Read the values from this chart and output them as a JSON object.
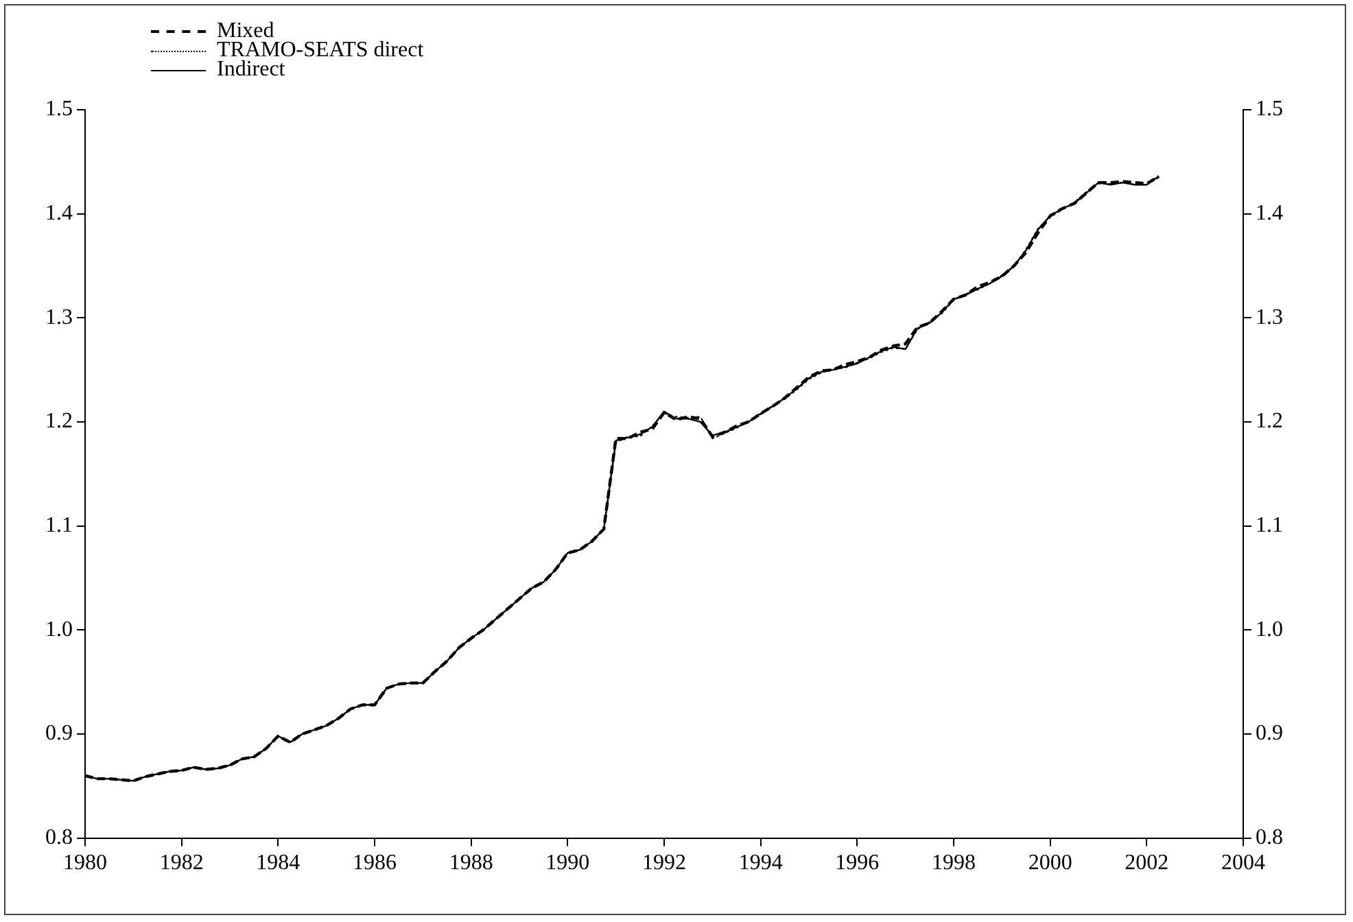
{
  "chart_data": {
    "type": "line",
    "x": [
      1980,
      1980.25,
      1980.5,
      1981,
      1981.25,
      1981.75,
      1982,
      1982.25,
      1982.5,
      1982.75,
      1983,
      1983.25,
      1983.5,
      1983.75,
      1984,
      1984.25,
      1984.5,
      1984.75,
      1985,
      1985.25,
      1985.5,
      1985.75,
      1986,
      1986.25,
      1986.5,
      1986.75,
      1987,
      1987.25,
      1987.5,
      1987.75,
      1988,
      1988.25,
      1988.5,
      1988.75,
      1989,
      1989.25,
      1989.5,
      1989.75,
      1990,
      1990.25,
      1990.5,
      1990.75,
      1991,
      1991.25,
      1991.5,
      1991.75,
      1992,
      1992.25,
      1992.5,
      1992.75,
      1993,
      1993.25,
      1993.5,
      1993.75,
      1994,
      1994.25,
      1994.5,
      1994.75,
      1995,
      1995.25,
      1995.5,
      1995.75,
      1996,
      1996.25,
      1996.5,
      1996.75,
      1997,
      1997.25,
      1997.5,
      1997.75,
      1998,
      1998.25,
      1998.5,
      1998.75,
      1999,
      1999.25,
      1999.5,
      1999.75,
      2000,
      2000.25,
      2000.5,
      2000.75,
      2001,
      2001.25,
      2001.5,
      2001.75,
      2002,
      2002.25
    ],
    "series": [
      {
        "name": "Mixed",
        "color": "#000000",
        "line_style": "dashed",
        "values": [
          0.86,
          0.857,
          0.857,
          0.855,
          0.859,
          0.864,
          0.865,
          0.868,
          0.866,
          0.867,
          0.87,
          0.876,
          0.878,
          0.886,
          0.898,
          0.892,
          0.9,
          0.904,
          0.908,
          0.915,
          0.924,
          0.928,
          0.928,
          0.944,
          0.948,
          0.949,
          0.949,
          0.96,
          0.97,
          0.983,
          0.992,
          1.0,
          1.01,
          1.02,
          1.03,
          1.04,
          1.046,
          1.058,
          1.074,
          1.077,
          1.085,
          1.097,
          1.184,
          1.184,
          1.19,
          1.193,
          1.209,
          1.202,
          1.205,
          1.203,
          1.186,
          1.19,
          1.196,
          1.2,
          1.208,
          1.215,
          1.223,
          1.233,
          1.243,
          1.249,
          1.25,
          1.255,
          1.258,
          1.262,
          1.269,
          1.273,
          1.275,
          1.291,
          1.295,
          1.306,
          1.318,
          1.322,
          1.33,
          1.334,
          1.34,
          1.35,
          1.363,
          1.382,
          1.398,
          1.405,
          1.41,
          1.42,
          1.43,
          1.43,
          1.431,
          1.43,
          1.429,
          1.436
        ]
      },
      {
        "name": "TRAMO-SEATS direct",
        "color": "#000000",
        "line_style": "dotted",
        "values": [
          0.86,
          0.857,
          0.857,
          0.855,
          0.859,
          0.864,
          0.865,
          0.868,
          0.866,
          0.867,
          0.87,
          0.876,
          0.878,
          0.886,
          0.898,
          0.892,
          0.9,
          0.904,
          0.908,
          0.915,
          0.924,
          0.928,
          0.928,
          0.944,
          0.948,
          0.949,
          0.949,
          0.96,
          0.97,
          0.983,
          0.992,
          1.0,
          1.01,
          1.02,
          1.03,
          1.04,
          1.046,
          1.058,
          1.074,
          1.077,
          1.085,
          1.097,
          1.18,
          1.186,
          1.186,
          1.196,
          1.208,
          1.205,
          1.204,
          1.205,
          1.184,
          1.189,
          1.194,
          1.201,
          1.207,
          1.216,
          1.222,
          1.231,
          1.241,
          1.247,
          1.251,
          1.252,
          1.257,
          1.261,
          1.267,
          1.271,
          1.27,
          1.289,
          1.296,
          1.304,
          1.317,
          1.323,
          1.327,
          1.333,
          1.341,
          1.349,
          1.366,
          1.386,
          1.397,
          1.404,
          1.411,
          1.421,
          1.429,
          1.429,
          1.43,
          1.428,
          1.428,
          1.435
        ]
      },
      {
        "name": "Indirect",
        "color": "#000000",
        "line_style": "solid",
        "values": [
          0.86,
          0.857,
          0.857,
          0.855,
          0.859,
          0.864,
          0.865,
          0.868,
          0.866,
          0.867,
          0.87,
          0.876,
          0.878,
          0.886,
          0.898,
          0.892,
          0.9,
          0.904,
          0.908,
          0.915,
          0.924,
          0.928,
          0.928,
          0.944,
          0.948,
          0.949,
          0.949,
          0.96,
          0.97,
          0.983,
          0.992,
          1.0,
          1.01,
          1.02,
          1.03,
          1.04,
          1.046,
          1.058,
          1.074,
          1.077,
          1.085,
          1.097,
          1.182,
          1.185,
          1.188,
          1.195,
          1.21,
          1.203,
          1.203,
          1.2,
          1.187,
          1.19,
          1.195,
          1.2,
          1.208,
          1.215,
          1.223,
          1.232,
          1.242,
          1.248,
          1.25,
          1.253,
          1.256,
          1.262,
          1.268,
          1.272,
          1.27,
          1.29,
          1.295,
          1.305,
          1.318,
          1.322,
          1.328,
          1.333,
          1.34,
          1.35,
          1.365,
          1.385,
          1.398,
          1.405,
          1.41,
          1.42,
          1.43,
          1.428,
          1.43,
          1.428,
          1.428,
          1.436
        ]
      }
    ],
    "xlim": [
      1980,
      2004
    ],
    "xticks": [
      1980,
      1982,
      1984,
      1986,
      1988,
      1990,
      1992,
      1994,
      1996,
      1998,
      2000,
      2002,
      2004
    ],
    "ylim": [
      0.8,
      1.5
    ],
    "yticks": [
      0.8,
      0.9,
      {
        "value": 1,
        "label": "1.0"
      },
      1.1,
      1.2,
      1.3,
      1.4,
      1.5
    ],
    "y2lim": [
      0.8,
      1.5
    ],
    "y2ticks": [
      0.8,
      0.9,
      {
        "value": 1,
        "label": "1.0"
      },
      1.1,
      1.2,
      1.3,
      1.4,
      1.5
    ],
    "grid": false,
    "legend": "top left",
    "marker": "none"
  }
}
